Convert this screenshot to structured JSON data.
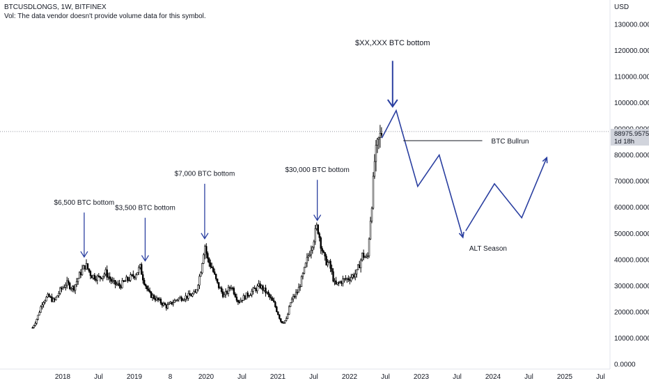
{
  "header": {
    "symbol_line": "BTCUSDLONGS, 1W, BITFINEX",
    "volume_note": "Vol: The data vendor doesn't provide volume data for this symbol."
  },
  "price_tag": {
    "value": "88975.9575",
    "countdown": "1d 18h"
  },
  "chart_data": {
    "type": "candlestick",
    "symbol": "BTCUSDLONGS",
    "interval": "1W",
    "exchange": "BITFINEX",
    "y_axis": {
      "unit": "USD",
      "ylim": [
        0,
        140000
      ],
      "ticks": [
        0,
        10000,
        20000,
        30000,
        40000,
        50000,
        60000,
        70000,
        80000,
        90000,
        100000,
        110000,
        120000,
        130000
      ],
      "tick_labels": [
        "0.0000",
        "10000.0000",
        "20000.0000",
        "30000.0000",
        "40000.0000",
        "50000.0000",
        "60000.0000",
        "70000.0000",
        "80000.0000",
        "90000.0000",
        "100000.0000",
        "110000.0000",
        "120000.0000",
        "130000.0000"
      ]
    },
    "x_axis": {
      "xlim": [
        2017.55,
        2025.9
      ],
      "ticks": [
        {
          "label": "2018",
          "t": 2018.0
        },
        {
          "label": "Jul",
          "t": 2018.5
        },
        {
          "label": "2019",
          "t": 2019.0
        },
        {
          "label": "8",
          "t": 2019.5
        },
        {
          "label": "2020",
          "t": 2020.0
        },
        {
          "label": "Jul",
          "t": 2020.5
        },
        {
          "label": "2021",
          "t": 2021.0
        },
        {
          "label": "Jul",
          "t": 2021.5
        },
        {
          "label": "2022",
          "t": 2022.0
        },
        {
          "label": "Jul",
          "t": 2022.5
        },
        {
          "label": "2023",
          "t": 2023.0
        },
        {
          "label": "Jul",
          "t": 2023.5
        },
        {
          "label": "2024",
          "t": 2024.0
        },
        {
          "label": "Jul",
          "t": 2024.5
        },
        {
          "label": "2025",
          "t": 2025.0
        },
        {
          "label": "Jul",
          "t": 2025.5
        }
      ]
    },
    "last_price": 88975.9575,
    "price_path": [
      [
        2017.58,
        14000
      ],
      [
        2017.65,
        18000
      ],
      [
        2017.72,
        24000
      ],
      [
        2017.8,
        26000
      ],
      [
        2017.88,
        24000
      ],
      [
        2017.96,
        28000
      ],
      [
        2018.05,
        31000
      ],
      [
        2018.15,
        29000
      ],
      [
        2018.25,
        35000
      ],
      [
        2018.32,
        38000
      ],
      [
        2018.4,
        34000
      ],
      [
        2018.5,
        33000
      ],
      [
        2018.6,
        35000
      ],
      [
        2018.7,
        31000
      ],
      [
        2018.8,
        30000
      ],
      [
        2018.88,
        32000
      ],
      [
        2019.0,
        34000
      ],
      [
        2019.08,
        37000
      ],
      [
        2019.12,
        33000
      ],
      [
        2019.2,
        27000
      ],
      [
        2019.3,
        25000
      ],
      [
        2019.45,
        22000
      ],
      [
        2019.6,
        25000
      ],
      [
        2019.75,
        26000
      ],
      [
        2019.85,
        27000
      ],
      [
        2019.92,
        35000
      ],
      [
        2019.98,
        46000
      ],
      [
        2020.02,
        40000
      ],
      [
        2020.08,
        37000
      ],
      [
        2020.15,
        31000
      ],
      [
        2020.25,
        26000
      ],
      [
        2020.35,
        30000
      ],
      [
        2020.45,
        24000
      ],
      [
        2020.55,
        26000
      ],
      [
        2020.65,
        28000
      ],
      [
        2020.75,
        30000
      ],
      [
        2020.85,
        27000
      ],
      [
        2020.95,
        23000
      ],
      [
        2021.05,
        16000
      ],
      [
        2021.12,
        17000
      ],
      [
        2021.18,
        24000
      ],
      [
        2021.28,
        28000
      ],
      [
        2021.35,
        34000
      ],
      [
        2021.42,
        41000
      ],
      [
        2021.5,
        48000
      ],
      [
        2021.55,
        53000
      ],
      [
        2021.6,
        46000
      ],
      [
        2021.65,
        40000
      ],
      [
        2021.72,
        38000
      ],
      [
        2021.8,
        30000
      ],
      [
        2021.9,
        32000
      ],
      [
        2022.0,
        33000
      ],
      [
        2022.1,
        35000
      ],
      [
        2022.18,
        42000
      ],
      [
        2022.25,
        40000
      ],
      [
        2022.28,
        52000
      ],
      [
        2022.32,
        65000
      ],
      [
        2022.35,
        78000
      ],
      [
        2022.4,
        85000
      ],
      [
        2022.45,
        88975.9575
      ]
    ],
    "annotations": [
      {
        "text": "$6,500 BTC bottom",
        "x": 2018.3,
        "label_y": 61000,
        "arrow_from": 58000,
        "arrow_to": 41000
      },
      {
        "text": "$3,500 BTC bottom",
        "x": 2019.15,
        "label_y": 59000,
        "arrow_from": 56000,
        "arrow_to": 39500
      },
      {
        "text": "$7,000 BTC bottom",
        "x": 2019.98,
        "label_y": 72000,
        "arrow_from": 69000,
        "arrow_to": 48000
      },
      {
        "text": "$30,000 BTC bottom",
        "x": 2021.55,
        "label_y": 73500,
        "arrow_from": 70500,
        "arrow_to": 55000
      },
      {
        "text": "$XX,XXX BTC bottom",
        "x": 2022.6,
        "label_y": 122000,
        "arrow_from": 116000,
        "arrow_to": 98500
      }
    ],
    "projection": [
      [
        2022.45,
        86500
      ],
      [
        2022.65,
        97000
      ],
      [
        2022.95,
        68000
      ],
      [
        2023.25,
        80000
      ],
      [
        2023.58,
        48500
      ]
    ],
    "projection_2": [
      [
        2023.62,
        51000
      ],
      [
        2024.02,
        69000
      ],
      [
        2024.4,
        56000
      ],
      [
        2024.75,
        79000
      ]
    ],
    "bullrun": {
      "label": "BTC Bullrun",
      "y": 85500,
      "x_from": 2022.75,
      "x_to": 2023.85
    },
    "alt_season": {
      "label": "ALT Season",
      "x": 2023.62,
      "y": 44500
    }
  }
}
